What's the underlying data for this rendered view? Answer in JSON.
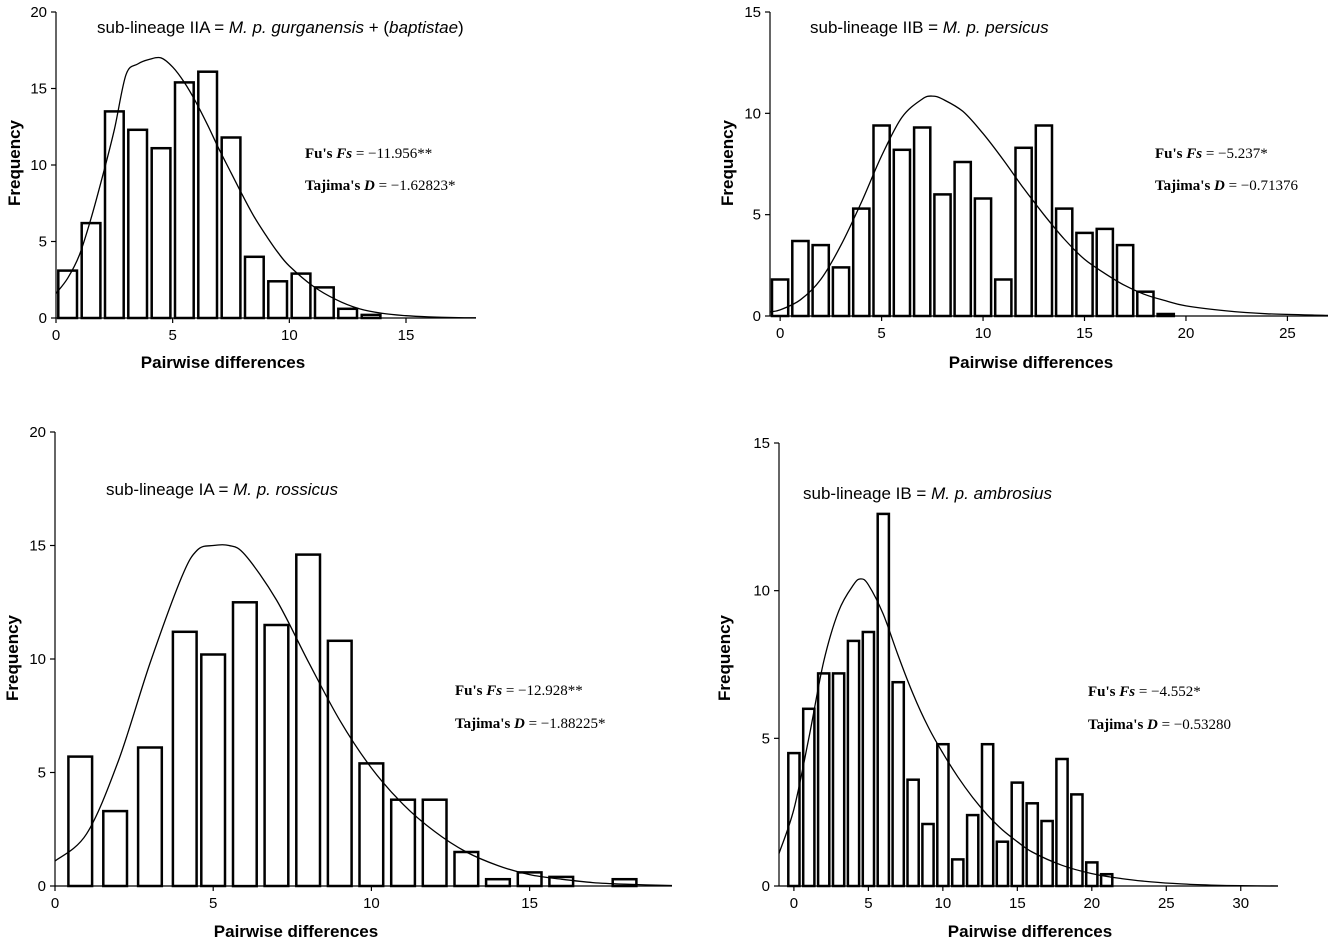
{
  "chart_data": [
    {
      "type": "bar",
      "title": {
        "prefix": "sub-lineage IIA = ",
        "italic": "M. p. gurganensis",
        "middle": " + (",
        "italic2": "baptistae",
        "suffix": ")"
      },
      "xlabel": "Pairwise differences",
      "ylabel": "Frequency",
      "xlim": [
        0,
        18
      ],
      "ylim": [
        0,
        20
      ],
      "xticks": [
        0,
        5,
        10,
        15
      ],
      "yticks": [
        0,
        5,
        10,
        15,
        20
      ],
      "bar_width": 0.8,
      "x": [
        0.5,
        1.5,
        2.5,
        3.5,
        4.5,
        5.5,
        6.5,
        7.5,
        8.5,
        9.5,
        10.5,
        11.5,
        12.5,
        13.5
      ],
      "values": [
        3.1,
        6.2,
        13.5,
        12.3,
        11.1,
        15.4,
        16.1,
        11.8,
        4.0,
        2.4,
        2.9,
        2.0,
        0.6,
        0.2
      ],
      "curve": {
        "x": [
          0,
          0.5,
          1,
          1.5,
          2,
          2.5,
          3,
          3.5,
          4,
          4.5,
          5,
          5.5,
          6,
          6.5,
          7,
          7.5,
          8,
          8.5,
          9,
          9.5,
          10,
          11,
          12,
          13,
          14,
          15,
          16,
          17,
          18
        ],
        "y": [
          1.6,
          2.6,
          4.1,
          6.5,
          9.3,
          12.3,
          15.9,
          16.6,
          16.9,
          17.0,
          16.4,
          15.4,
          14.1,
          12.6,
          11.0,
          9.5,
          8.0,
          6.6,
          5.4,
          4.3,
          3.4,
          2.1,
          1.2,
          0.6,
          0.3,
          0.15,
          0.07,
          0.03,
          0.01
        ]
      },
      "stats": {
        "fs_label": "Fu's ",
        "fs_symbol": "Fs",
        "fs_value": " = −11.956**",
        "d_label": "Tajima's ",
        "d_symbol": "D",
        "d_value": " = −1.62823*"
      }
    },
    {
      "type": "bar",
      "title": {
        "prefix": "sub-lineage IIB = ",
        "italic": "M. p. persicus",
        "middle": "",
        "italic2": "",
        "suffix": ""
      },
      "xlabel": "Pairwise differences",
      "ylabel": "Frequency",
      "xlim": [
        -0.5,
        27
      ],
      "ylim": [
        0,
        15
      ],
      "xticks": [
        0,
        5,
        10,
        15,
        20,
        25
      ],
      "yticks": [
        0,
        5,
        10,
        15
      ],
      "bar_width": 0.8,
      "x": [
        0,
        1,
        2,
        3,
        4,
        5,
        6,
        7,
        8,
        9,
        10,
        11,
        12,
        13,
        14,
        15,
        16,
        17,
        18,
        19
      ],
      "values": [
        1.8,
        3.7,
        3.5,
        2.4,
        5.3,
        9.4,
        8.2,
        9.3,
        6.0,
        7.6,
        5.8,
        1.8,
        8.3,
        9.4,
        5.3,
        4.1,
        4.3,
        3.5,
        1.2,
        0.1
      ],
      "curve": {
        "x": [
          -0.5,
          0,
          1,
          2,
          3,
          4,
          5,
          6,
          7,
          7.5,
          8,
          9,
          10,
          11,
          12,
          13,
          14,
          15,
          16,
          17,
          18,
          19,
          20,
          22,
          24,
          27
        ],
        "y": [
          0.2,
          0.3,
          0.8,
          1.8,
          3.5,
          5.6,
          7.9,
          9.8,
          10.7,
          10.85,
          10.7,
          10.1,
          9.0,
          7.7,
          6.3,
          5.0,
          3.8,
          2.8,
          2.1,
          1.5,
          1.05,
          0.75,
          0.5,
          0.25,
          0.11,
          0.03
        ]
      },
      "stats": {
        "fs_label": "Fu's ",
        "fs_symbol": "Fs",
        "fs_value": " = −5.237*",
        "d_label": "Tajima's ",
        "d_symbol": "D",
        "d_value": " = −0.71376"
      }
    },
    {
      "type": "bar",
      "title": {
        "prefix": "sub-lineage IA = ",
        "italic": "M. p. rossicus",
        "middle": "",
        "italic2": "",
        "suffix": ""
      },
      "xlabel": "Pairwise differences",
      "ylabel": "Frequency",
      "xlim": [
        0,
        19.5
      ],
      "ylim": [
        0,
        20
      ],
      "xticks": [
        0,
        5,
        10,
        15
      ],
      "yticks": [
        0,
        5,
        10,
        15,
        20
      ],
      "bar_width": 0.75,
      "x": [
        0.8,
        1.9,
        3.0,
        4.1,
        5.0,
        6.0,
        7.0,
        8.0,
        9.0,
        10.0,
        11.0,
        12.0,
        13.0,
        14.0,
        15.0,
        16.0,
        18.0
      ],
      "values": [
        5.7,
        3.3,
        6.1,
        11.2,
        10.2,
        12.5,
        11.5,
        14.6,
        10.8,
        5.4,
        3.8,
        3.8,
        1.5,
        0.3,
        0.6,
        0.4,
        0.3
      ],
      "curve": {
        "x": [
          0,
          1,
          2,
          3,
          4,
          4.5,
          5,
          5.5,
          6,
          7,
          8,
          9,
          10,
          11,
          12,
          13,
          14,
          15,
          16,
          17,
          18,
          19.5
        ],
        "y": [
          1.1,
          2.3,
          5.5,
          9.8,
          13.6,
          14.8,
          15.0,
          15.0,
          14.6,
          12.6,
          9.9,
          7.3,
          5.2,
          3.6,
          2.4,
          1.5,
          0.9,
          0.5,
          0.3,
          0.15,
          0.08,
          0.02
        ]
      },
      "stats": {
        "fs_label": "Fu's ",
        "fs_symbol": "Fs",
        "fs_value": " = −12.928**",
        "d_label": "Tajima's ",
        "d_symbol": "D",
        "d_value": " = −1.88225*"
      }
    },
    {
      "type": "bar",
      "title": {
        "prefix": "sub-lineage IB = ",
        "italic": "M. p. ambrosius",
        "middle": "",
        "italic2": "",
        "suffix": ""
      },
      "xlabel": "Pairwise differences",
      "ylabel": "Frequency",
      "xlim": [
        -1,
        32.5
      ],
      "ylim": [
        0,
        15
      ],
      "xticks": [
        0,
        5,
        10,
        15,
        20,
        25,
        30
      ],
      "yticks": [
        0,
        5,
        10,
        15
      ],
      "bar_width": 0.75,
      "x": [
        0,
        1,
        2,
        3,
        4,
        5,
        6,
        7,
        8,
        9,
        10,
        11,
        12,
        13,
        14,
        15,
        16,
        17,
        18,
        19,
        20,
        21,
        22
      ],
      "values": [
        4.5,
        6.0,
        7.2,
        7.2,
        8.3,
        8.6,
        12.6,
        6.9,
        3.6,
        2.1,
        4.8,
        0.9,
        2.4,
        4.8,
        1.5,
        3.5,
        2.8,
        2.2,
        4.3,
        3.1,
        0.8,
        0.4,
        0.0
      ],
      "curve": {
        "x": [
          -1,
          0,
          1,
          2,
          3,
          4,
          4.5,
          5,
          6,
          7,
          8,
          9,
          10,
          11,
          12,
          13,
          14,
          15,
          16,
          18,
          20,
          22,
          24,
          26,
          28,
          30,
          32.5
        ],
        "y": [
          1.1,
          2.6,
          5.0,
          7.6,
          9.3,
          10.2,
          10.4,
          10.2,
          9.2,
          7.8,
          6.5,
          5.4,
          4.5,
          3.7,
          3.0,
          2.4,
          1.9,
          1.5,
          1.15,
          0.7,
          0.42,
          0.25,
          0.14,
          0.07,
          0.03,
          0.01,
          0.0
        ]
      },
      "stats": {
        "fs_label": "Fu's ",
        "fs_symbol": "Fs",
        "fs_value": " = −4.552*",
        "d_label": "Tajima's ",
        "d_symbol": "D",
        "d_value": " = −0.53280"
      }
    }
  ]
}
